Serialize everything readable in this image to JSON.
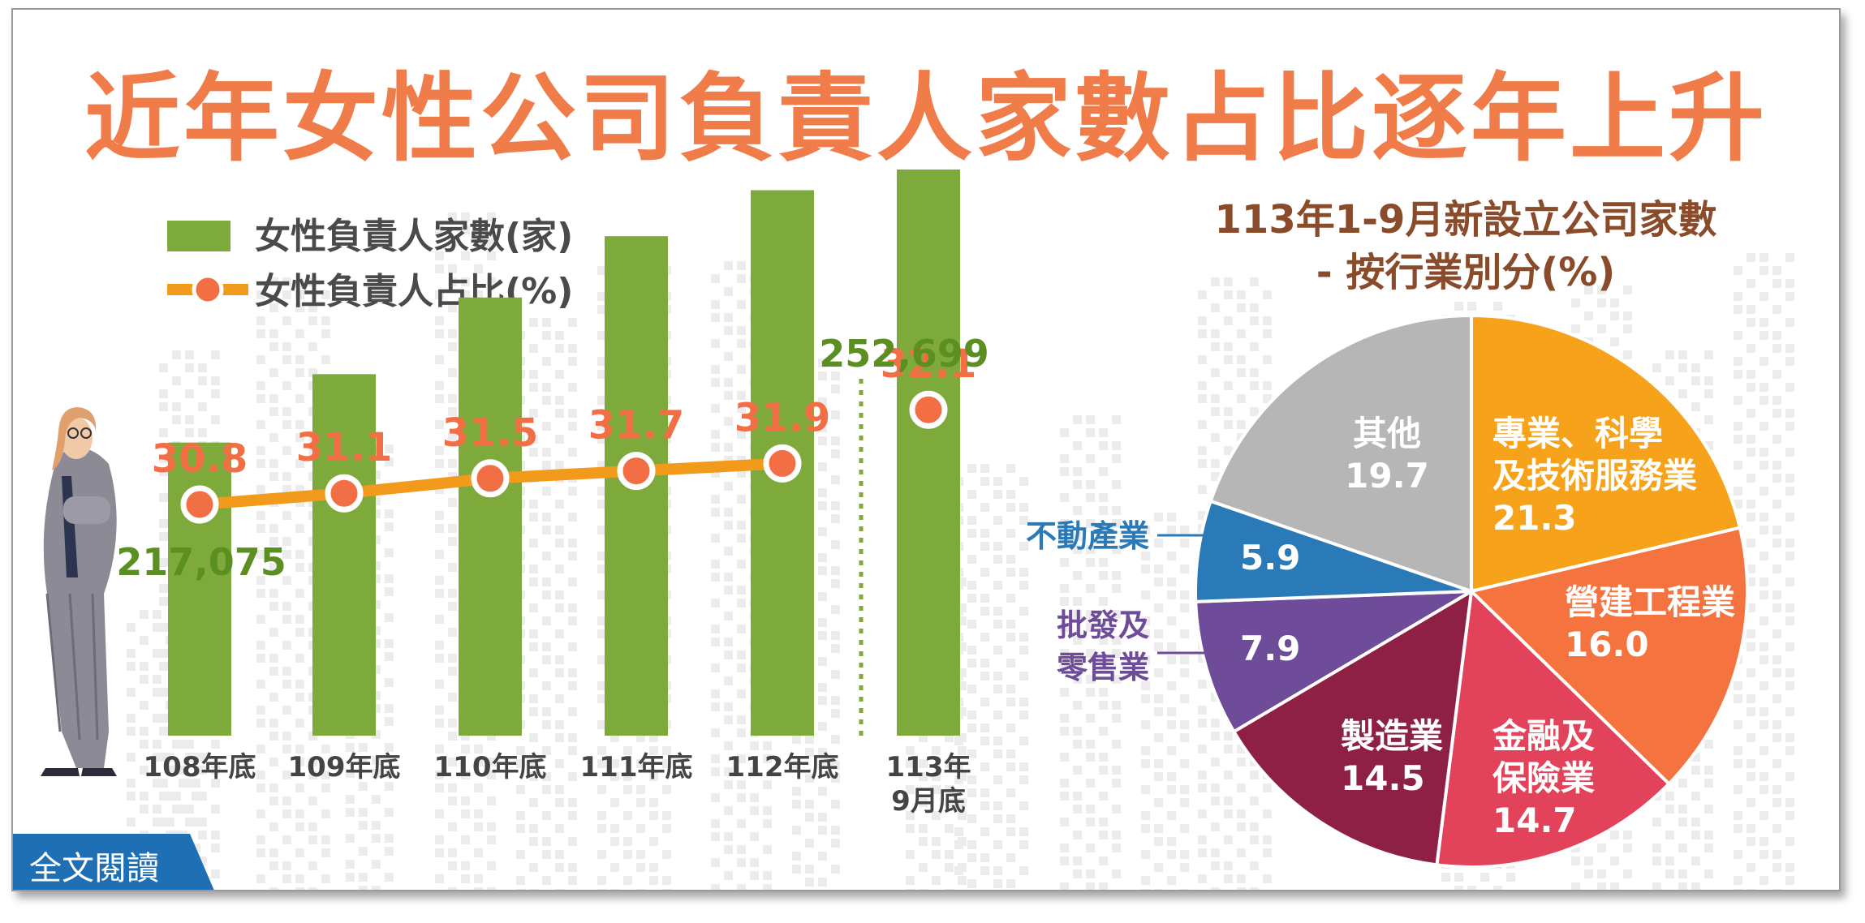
{
  "headline": "近年女性公司負責人家數占比逐年上升",
  "read_more_label": "全文閱讀",
  "colors": {
    "title": "#f07c4a",
    "bar": "#7eaa3c",
    "line": "#f29a1b",
    "dot": "#f26f45",
    "value_green": "#5b8f22",
    "value_orange": "#f26f45",
    "pie_title": "#8a4b2a",
    "read_more": "#1f6fb5"
  },
  "chart_data": [
    {
      "type": "bar",
      "legend": [
        "女性負責人家數(家)",
        "女性負責人占比(%)"
      ],
      "categories": [
        "108年底",
        "109年底",
        "110年底",
        "111年底",
        "112年底",
        "113年\n9月底"
      ],
      "series": [
        {
          "name": "女性負責人家數(家)",
          "type": "bar",
          "values": [
            217075,
            226000,
            236000,
            244000,
            250000,
            252699
          ]
        },
        {
          "name": "女性負責人占比(%)",
          "type": "line",
          "values": [
            30.8,
            31.1,
            31.5,
            31.7,
            31.9,
            32.1
          ]
        }
      ],
      "labeled_counts": {
        "108年底": "217,075",
        "113年\n9月底": "252,699"
      }
    },
    {
      "type": "pie",
      "title": "113年1-9月新設立公司家數",
      "subtitle": "- 按行業別分(%)",
      "slices": [
        {
          "label": "專業、科學及技術服務業",
          "value": 21.3,
          "color": "#f6a31b"
        },
        {
          "label": "營建工程業",
          "value": 16.0,
          "color": "#f4733f"
        },
        {
          "label": "金融及保險業",
          "value": 14.7,
          "color": "#e2435a"
        },
        {
          "label": "製造業",
          "value": 14.5,
          "color": "#8e2046"
        },
        {
          "label": "批發及零售業",
          "value": 7.9,
          "color": "#6e4c99"
        },
        {
          "label": "不動產業",
          "value": 5.9,
          "color": "#2a7ab8"
        },
        {
          "label": "其他",
          "value": 19.7,
          "color": "#b6b6b6"
        }
      ]
    }
  ]
}
